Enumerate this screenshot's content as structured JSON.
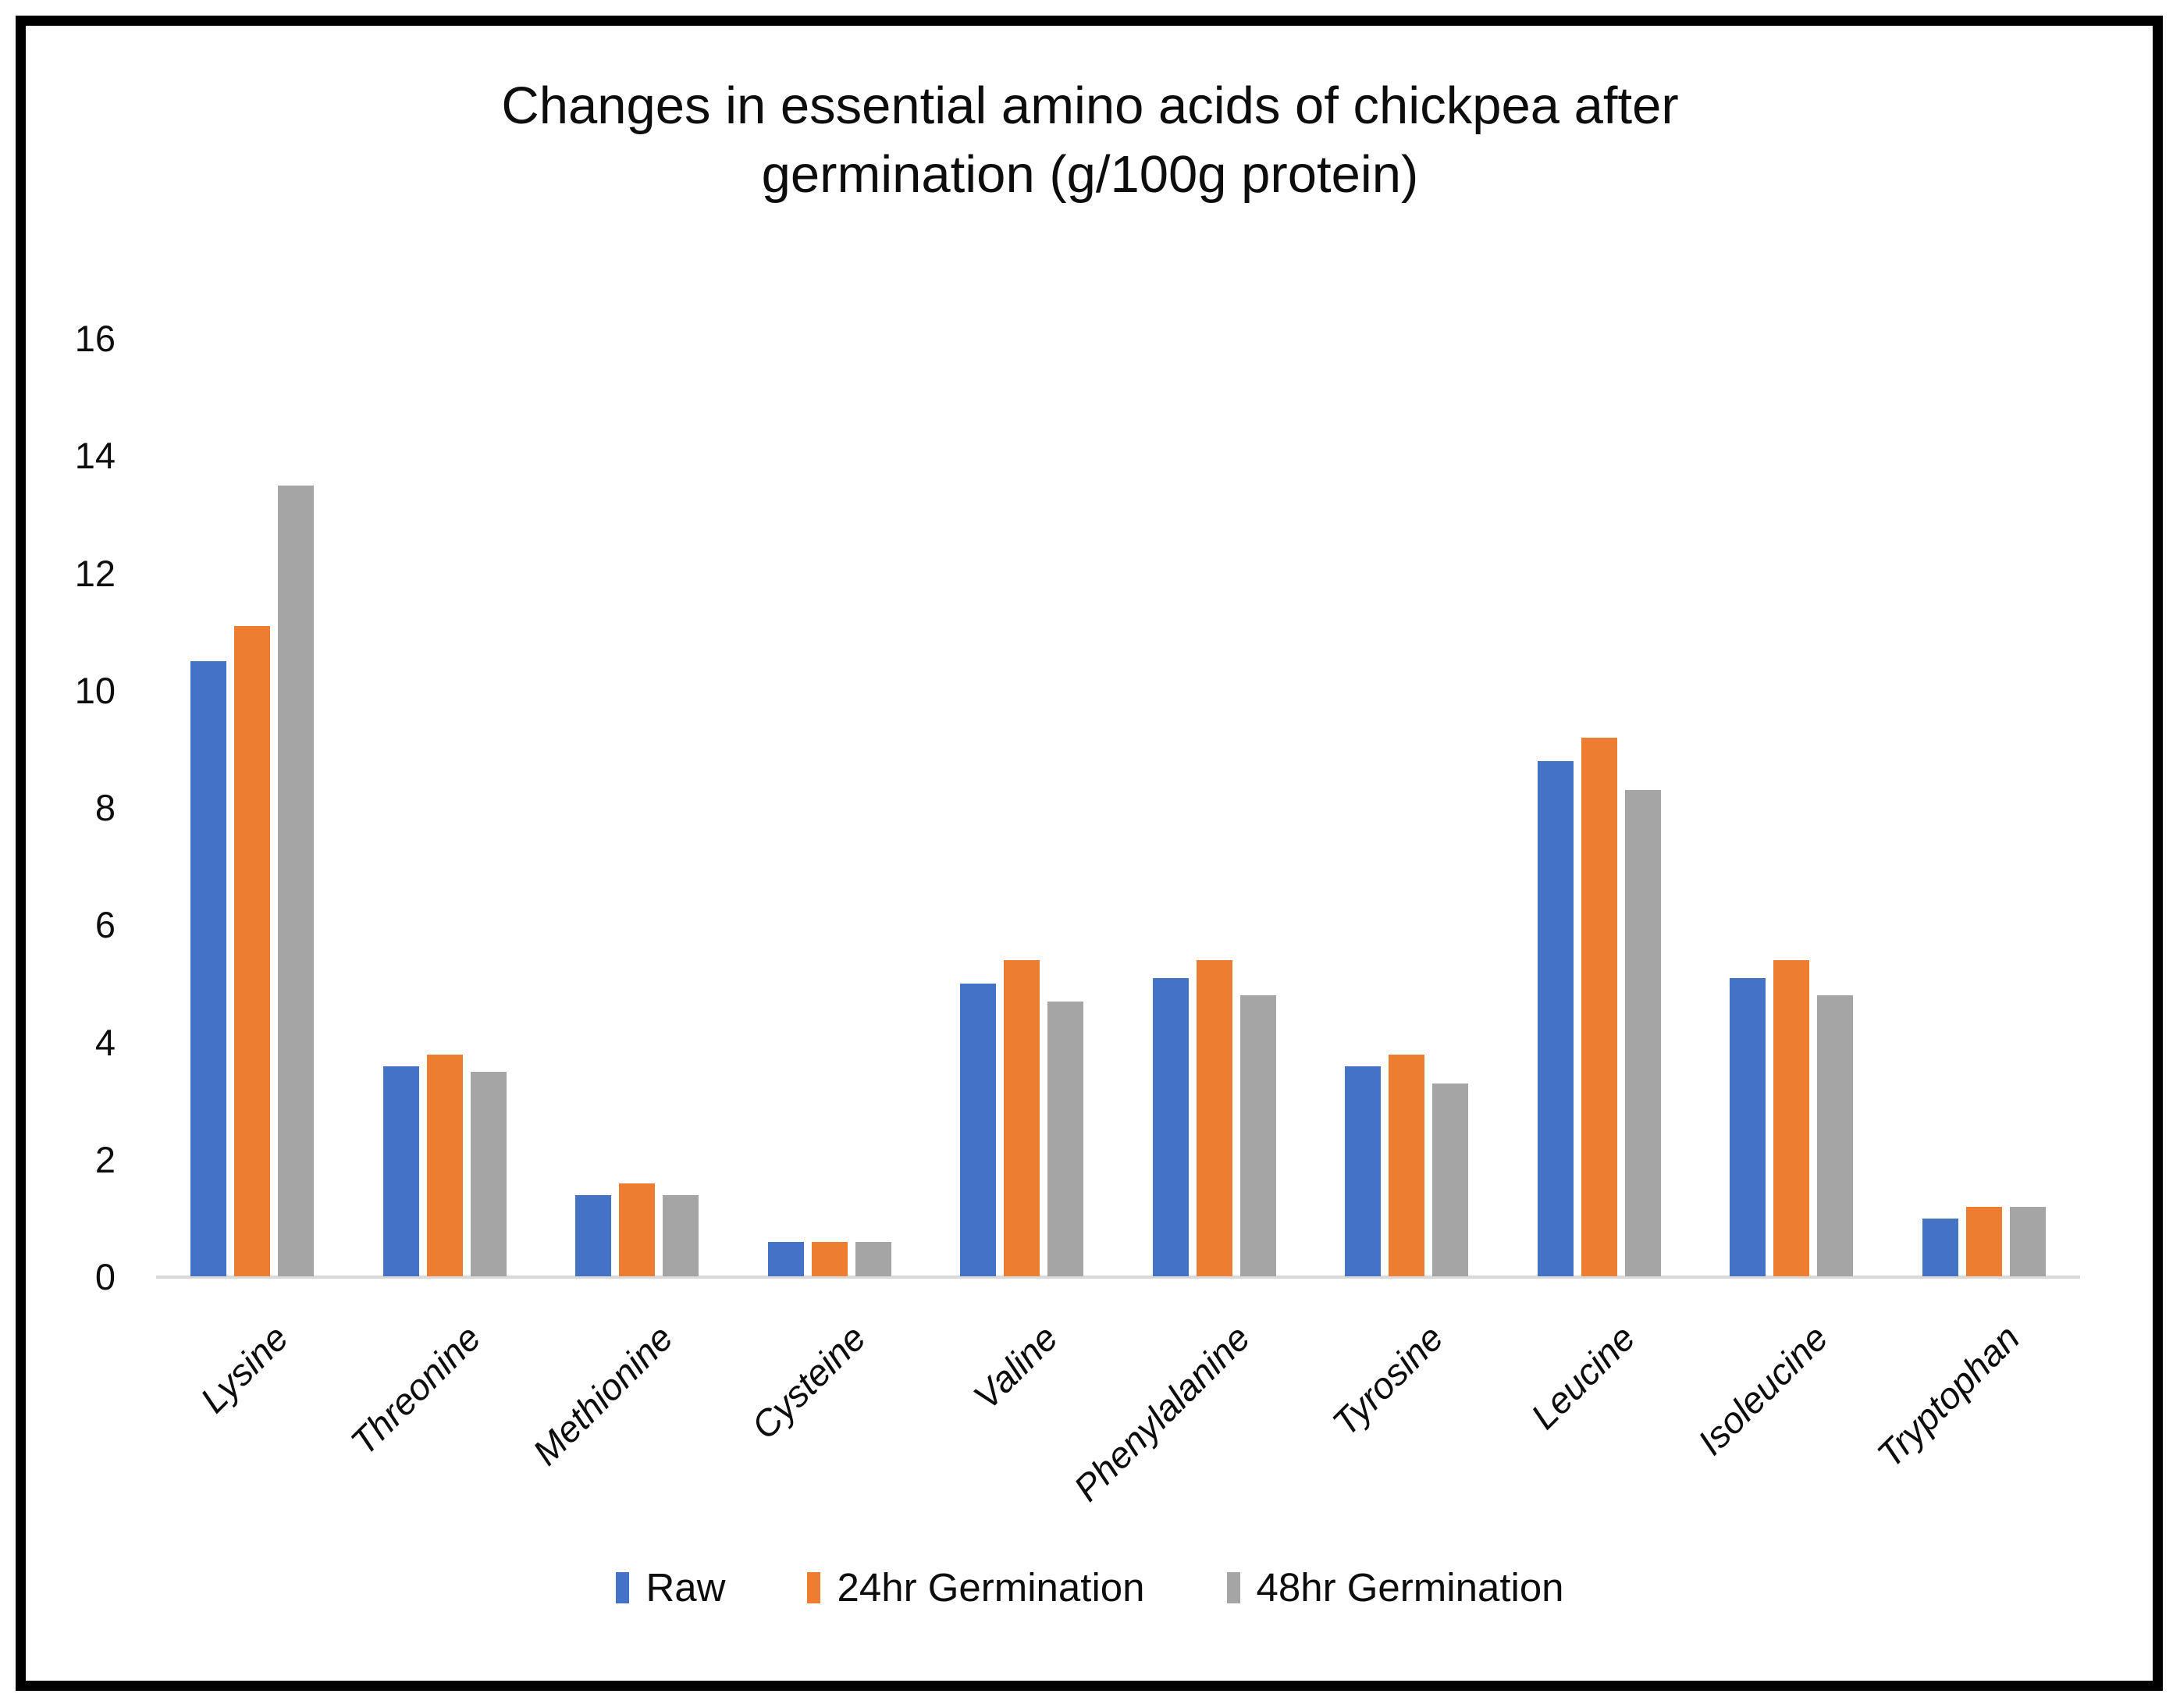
{
  "page": {
    "background": "#FFFFFF",
    "border_color": "#000000"
  },
  "chart_data": {
    "type": "bar",
    "title": "Changes in essential amino acids of chickpea after germination (g/100g protein)",
    "title_lines": [
      "Changes in essential amino acids of chickpea after",
      "germination (g/100g protein)"
    ],
    "categories": [
      "Lysine",
      "Threonine",
      "Methionine",
      "Cysteine",
      "Valine",
      "Phenylalanine",
      "Tyrosine",
      "Leucine",
      "Isoleucine",
      "Tryptophan"
    ],
    "series": [
      {
        "name": "Raw",
        "color": "#4472C4",
        "values": [
          10.5,
          3.6,
          1.4,
          0.6,
          5.0,
          5.1,
          3.6,
          8.8,
          5.1,
          1.0
        ]
      },
      {
        "name": "24hr Germination",
        "color": "#ED7D31",
        "values": [
          11.1,
          3.8,
          1.6,
          0.6,
          5.4,
          5.4,
          3.8,
          9.2,
          5.4,
          1.2
        ]
      },
      {
        "name": "48hr Germination",
        "color": "#A5A5A5",
        "values": [
          13.5,
          3.5,
          1.4,
          0.6,
          4.7,
          4.8,
          3.3,
          8.3,
          4.8,
          1.2
        ]
      }
    ],
    "xlabel": "",
    "ylabel": "",
    "ylim": [
      0,
      16
    ],
    "y_ticks": [
      0,
      2,
      4,
      6,
      8,
      10,
      12,
      14,
      16
    ],
    "grid": "off",
    "legend_position": "bottom",
    "axis_line_color": "#D9D9D9",
    "text_color": "#0D0D0D"
  }
}
